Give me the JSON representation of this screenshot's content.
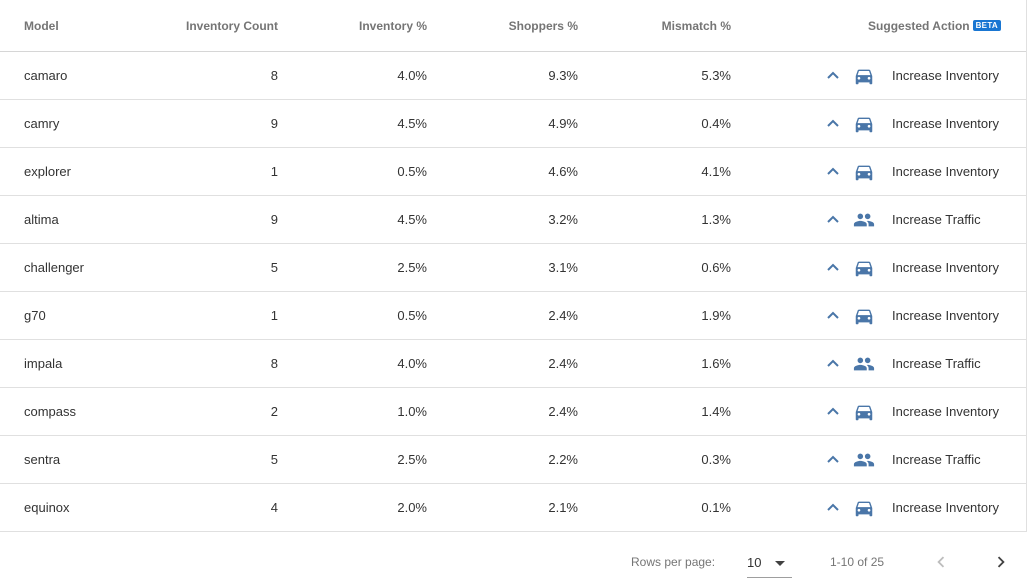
{
  "table": {
    "headers": {
      "model": "Model",
      "inventory_count": "Inventory Count",
      "inventory_pct": "Inventory %",
      "shoppers_pct": "Shoppers %",
      "mismatch_pct": "Mismatch %",
      "suggested_action": "Suggested Action",
      "beta_badge": "BETA"
    },
    "rows": [
      {
        "model": "camaro",
        "inventory_count": "8",
        "inventory_pct": "4.0%",
        "shoppers_pct": "9.3%",
        "mismatch_pct": "5.3%",
        "action": "Increase Inventory",
        "action_icon": "car-icon"
      },
      {
        "model": "camry",
        "inventory_count": "9",
        "inventory_pct": "4.5%",
        "shoppers_pct": "4.9%",
        "mismatch_pct": "0.4%",
        "action": "Increase Inventory",
        "action_icon": "car-icon"
      },
      {
        "model": "explorer",
        "inventory_count": "1",
        "inventory_pct": "0.5%",
        "shoppers_pct": "4.6%",
        "mismatch_pct": "4.1%",
        "action": "Increase Inventory",
        "action_icon": "car-icon"
      },
      {
        "model": "altima",
        "inventory_count": "9",
        "inventory_pct": "4.5%",
        "shoppers_pct": "3.2%",
        "mismatch_pct": "1.3%",
        "action": "Increase Traffic",
        "action_icon": "people-icon"
      },
      {
        "model": "challenger",
        "inventory_count": "5",
        "inventory_pct": "2.5%",
        "shoppers_pct": "3.1%",
        "mismatch_pct": "0.6%",
        "action": "Increase Inventory",
        "action_icon": "car-icon"
      },
      {
        "model": "g70",
        "inventory_count": "1",
        "inventory_pct": "0.5%",
        "shoppers_pct": "2.4%",
        "mismatch_pct": "1.9%",
        "action": "Increase Inventory",
        "action_icon": "car-icon"
      },
      {
        "model": "impala",
        "inventory_count": "8",
        "inventory_pct": "4.0%",
        "shoppers_pct": "2.4%",
        "mismatch_pct": "1.6%",
        "action": "Increase Traffic",
        "action_icon": "people-icon"
      },
      {
        "model": "compass",
        "inventory_count": "2",
        "inventory_pct": "1.0%",
        "shoppers_pct": "2.4%",
        "mismatch_pct": "1.4%",
        "action": "Increase Inventory",
        "action_icon": "car-icon"
      },
      {
        "model": "sentra",
        "inventory_count": "5",
        "inventory_pct": "2.5%",
        "shoppers_pct": "2.2%",
        "mismatch_pct": "0.3%",
        "action": "Increase Traffic",
        "action_icon": "people-icon"
      },
      {
        "model": "equinox",
        "inventory_count": "4",
        "inventory_pct": "2.0%",
        "shoppers_pct": "2.1%",
        "mismatch_pct": "0.1%",
        "action": "Increase Inventory",
        "action_icon": "car-icon"
      }
    ]
  },
  "pagination": {
    "rows_per_page_label": "Rows per page:",
    "rows_per_page_value": "10",
    "range_text": "1-10 of 25",
    "prev_icon": "chevron-left-icon",
    "next_icon": "chevron-right-icon"
  },
  "colors": {
    "accent": "#4a76a8",
    "beta_badge": "#1976d2",
    "header_text": "#757575",
    "divider": "#e0e0e0"
  }
}
